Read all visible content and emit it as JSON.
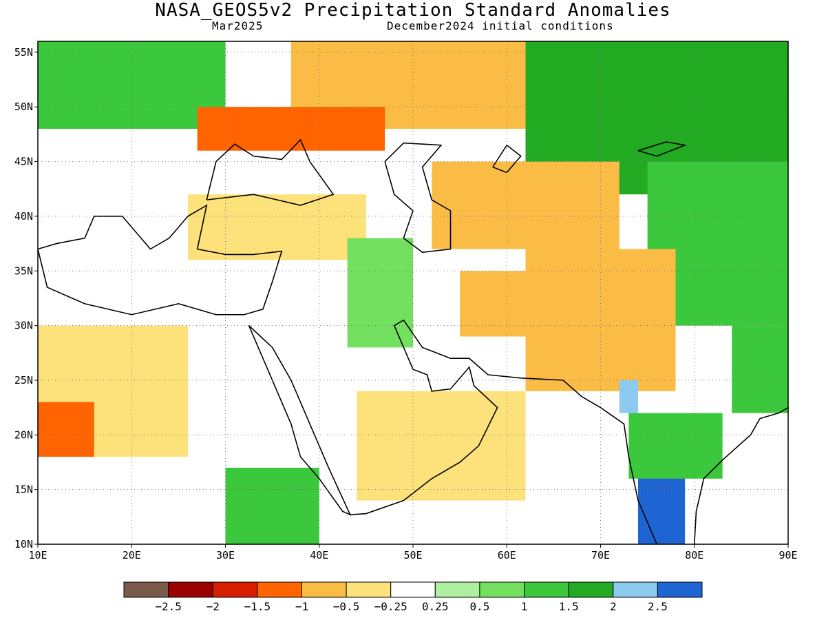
{
  "header": {
    "title": "NASA_GEOS5v2 Precipitation Standard Anomalies",
    "valid_month": "Mar2025",
    "init": "December2024 initial conditions"
  },
  "map": {
    "lon_range": [
      10,
      90
    ],
    "lat_range": [
      10,
      56
    ],
    "lon_ticks": [
      "10E",
      "20E",
      "30E",
      "40E",
      "50E",
      "60E",
      "70E",
      "80E",
      "90E"
    ],
    "lat_ticks": [
      "10N",
      "15N",
      "20N",
      "25N",
      "30N",
      "35N",
      "40N",
      "45N",
      "50N",
      "55N"
    ],
    "grid": "dotted"
  },
  "colorbar": {
    "colors": [
      "#7a5a4a",
      "#9c0000",
      "#d81e00",
      "#ff6400",
      "#fbbc45",
      "#fde17a",
      "#ffffff",
      "#aef0a0",
      "#73e060",
      "#3cc83c",
      "#22aa22",
      "#8ccaf0",
      "#1e64d2"
    ],
    "labels": [
      "−2.5",
      "−2",
      "−1.5",
      "−1",
      "−0.5",
      "−0.25",
      "0.25",
      "0.5",
      "1",
      "1.5",
      "2",
      "2.5"
    ]
  },
  "regions": [
    {
      "name": "central-asia-wet",
      "cls": 10,
      "lon": [
        62,
        90
      ],
      "lat": [
        42,
        56
      ]
    },
    {
      "name": "siberia-wet",
      "cls": 9,
      "lon": [
        75,
        90
      ],
      "lat": [
        30,
        45
      ]
    },
    {
      "name": "eastern-europe-wet",
      "cls": 9,
      "lon": [
        10,
        30
      ],
      "lat": [
        48,
        56
      ]
    },
    {
      "name": "russia-dry",
      "cls": 4,
      "lon": [
        37,
        62
      ],
      "lat": [
        48,
        56
      ]
    },
    {
      "name": "ukraine-very-dry",
      "cls": 3,
      "lon": [
        27,
        47
      ],
      "lat": [
        46,
        50
      ]
    },
    {
      "name": "caspian-dry",
      "cls": 4,
      "lon": [
        52,
        72
      ],
      "lat": [
        37,
        45
      ]
    },
    {
      "name": "turkey-dry",
      "cls": 5,
      "lon": [
        26,
        45
      ],
      "lat": [
        36,
        42
      ]
    },
    {
      "name": "iraq-wet",
      "cls": 8,
      "lon": [
        43,
        50
      ],
      "lat": [
        28,
        38
      ]
    },
    {
      "name": "iran-dry",
      "cls": 4,
      "lon": [
        55,
        70
      ],
      "lat": [
        29,
        35
      ]
    },
    {
      "name": "afghan-dry",
      "cls": 4,
      "lon": [
        62,
        78
      ],
      "lat": [
        24,
        37
      ]
    },
    {
      "name": "sahara-dry",
      "cls": 5,
      "lon": [
        10,
        26
      ],
      "lat": [
        18,
        30
      ]
    },
    {
      "name": "chad-very-dry",
      "cls": 3,
      "lon": [
        10,
        16
      ],
      "lat": [
        18,
        23
      ]
    },
    {
      "name": "arabia-dry",
      "cls": 5,
      "lon": [
        44,
        62
      ],
      "lat": [
        14,
        24
      ]
    },
    {
      "name": "ethiopia-wet",
      "cls": 9,
      "lon": [
        30,
        40
      ],
      "lat": [
        10,
        17
      ]
    },
    {
      "name": "india-wet",
      "cls": 12,
      "lon": [
        74,
        79
      ],
      "lat": [
        10,
        20
      ]
    },
    {
      "name": "india-wet-ring",
      "cls": 9,
      "lon": [
        73,
        83
      ],
      "lat": [
        16,
        22
      ]
    },
    {
      "name": "gujarat-wet",
      "cls": 11,
      "lon": [
        72,
        74
      ],
      "lat": [
        22,
        25
      ]
    },
    {
      "name": "bengal-wet",
      "cls": 9,
      "lon": [
        84,
        90
      ],
      "lat": [
        22,
        30
      ]
    }
  ]
}
